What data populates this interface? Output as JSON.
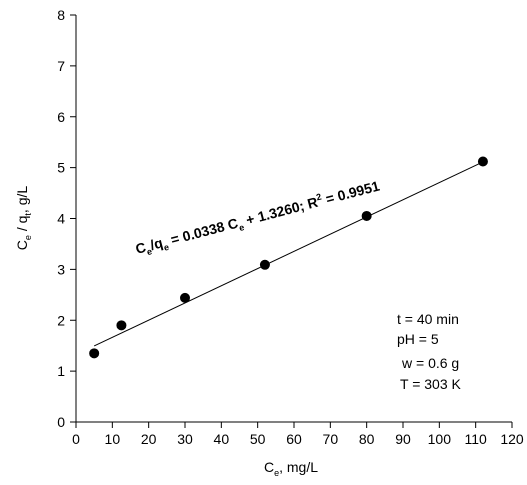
{
  "chart_data": {
    "type": "scatter",
    "x": [
      5,
      12.5,
      30,
      52,
      80,
      112
    ],
    "y": [
      1.35,
      1.9,
      2.44,
      3.09,
      4.05,
      5.12
    ],
    "xlim": [
      0,
      120
    ],
    "ylim": [
      0,
      8
    ],
    "x_ticks": [
      0,
      10,
      20,
      30,
      40,
      50,
      60,
      70,
      80,
      90,
      100,
      110,
      120
    ],
    "y_ticks": [
      0,
      1,
      2,
      3,
      4,
      5,
      6,
      7,
      8
    ],
    "fit_line": {
      "slope": 0.0338,
      "intercept": 1.326,
      "x_range": [
        5,
        112
      ]
    },
    "xlabel": {
      "base": "C",
      "sub": "e",
      "rest": ", mg/L"
    },
    "ylabel": {
      "base1": "C",
      "sub1": "e",
      "mid": " / q",
      "sub2": "t",
      "rest": ", g/L"
    },
    "equation": {
      "p1": "C",
      "s1": "e",
      "p2": "/q",
      "s2": "e",
      "p3": " = 0.0338 C",
      "s3": "e",
      "p4": " + 1.3260; R",
      "sup": "2",
      "p5": " = 0.9951"
    },
    "conditions": [
      "t = 40 min",
      "pH = 5",
      "w = 0.6 g",
      "T = 303 K"
    ],
    "grid": false,
    "colors": {
      "marker": "#000000",
      "line": "#000000"
    }
  }
}
